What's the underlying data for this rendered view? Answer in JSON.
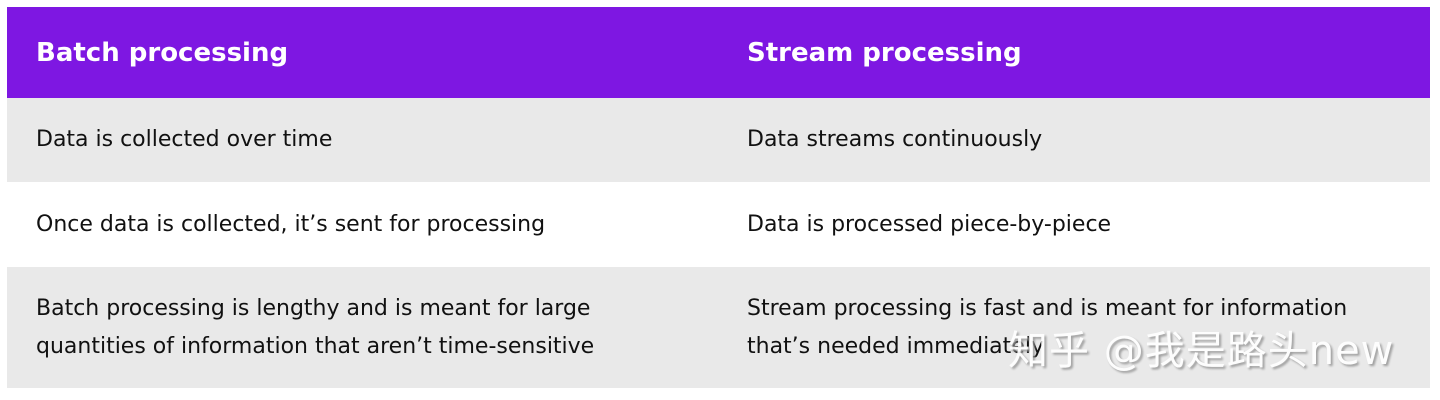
{
  "table": {
    "headers": [
      "Batch processing",
      "Stream processing"
    ],
    "rows": [
      [
        "Data is collected over time",
        "Data streams continuously"
      ],
      [
        "Once data is collected, it’s sent for processing",
        "Data is processed piece-by-piece"
      ],
      [
        "Batch processing is lengthy and is meant for large quantities of information that aren’t time-sensitive",
        "Stream processing is fast and is meant for information that’s needed immediately"
      ]
    ]
  },
  "colors": {
    "header_bg": "#7e17e2",
    "row_alt_bg": "#e9e9e9"
  },
  "watermark": "知乎 @我是路头new"
}
